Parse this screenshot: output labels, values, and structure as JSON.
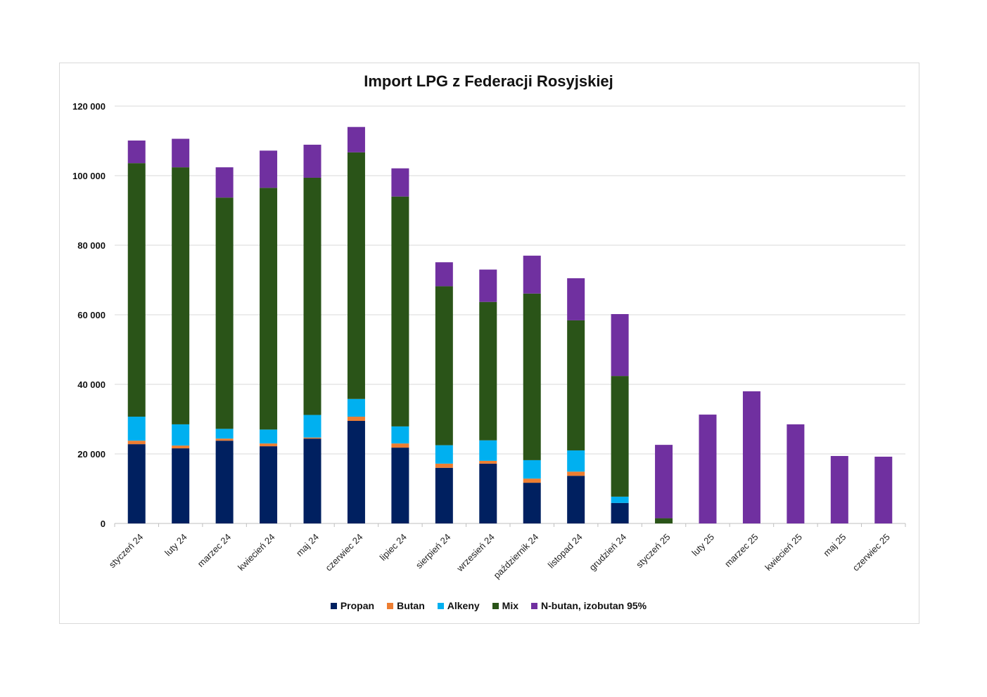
{
  "chart_data": {
    "type": "bar",
    "stacked": true,
    "title": "Import LPG z Federacji Rosyjskiej",
    "xlabel": "",
    "ylabel": "",
    "ylim": [
      0,
      120000
    ],
    "yticks": [
      0,
      20000,
      40000,
      60000,
      80000,
      100000,
      120000
    ],
    "ytick_labels": [
      "0",
      "20 000",
      "40 000",
      "60 000",
      "80 000",
      "100 000",
      "120 000"
    ],
    "grid": true,
    "legend_position": "bottom",
    "categories": [
      "styczeń 24",
      "luty 24",
      "marzec 24",
      "kwiecień 24",
      "maj 24",
      "czerwiec 24",
      "lipiec 24",
      "sierpień 24",
      "wrzesień 24",
      "październik 24",
      "listopad 24",
      "grudzień 24",
      "styczeń 25",
      "luty 25",
      "marzec 25",
      "kwiecień 25",
      "maj 25",
      "czerwiec 25"
    ],
    "series": [
      {
        "name": "Propan",
        "color": "#002060",
        "values": [
          22800,
          21600,
          23800,
          22200,
          24400,
          29500,
          21800,
          16000,
          17200,
          11700,
          13700,
          5900,
          0,
          0,
          0,
          0,
          0,
          0
        ]
      },
      {
        "name": "Butan",
        "color": "#ED7D31",
        "values": [
          1000,
          800,
          600,
          800,
          300,
          1200,
          1200,
          1200,
          800,
          1200,
          1200,
          0,
          0,
          0,
          0,
          0,
          0,
          0
        ]
      },
      {
        "name": "Alkeny",
        "color": "#00B0F0",
        "values": [
          6900,
          6100,
          2800,
          4000,
          6500,
          5100,
          4900,
          5300,
          5900,
          5300,
          6100,
          1800,
          0,
          0,
          0,
          0,
          0,
          0
        ]
      },
      {
        "name": "Mix",
        "color": "#2A5418",
        "values": [
          72900,
          73900,
          66500,
          69500,
          68200,
          70900,
          66100,
          45700,
          39800,
          47900,
          37400,
          34700,
          1500,
          0,
          0,
          0,
          0,
          0
        ]
      },
      {
        "name": "N-butan, izobutan 95%",
        "color": "#7030A0",
        "values": [
          6500,
          8200,
          8700,
          10700,
          9500,
          7300,
          8100,
          6900,
          9300,
          10900,
          12100,
          17800,
          21100,
          31300,
          38000,
          28500,
          19400,
          19200
        ]
      }
    ]
  }
}
